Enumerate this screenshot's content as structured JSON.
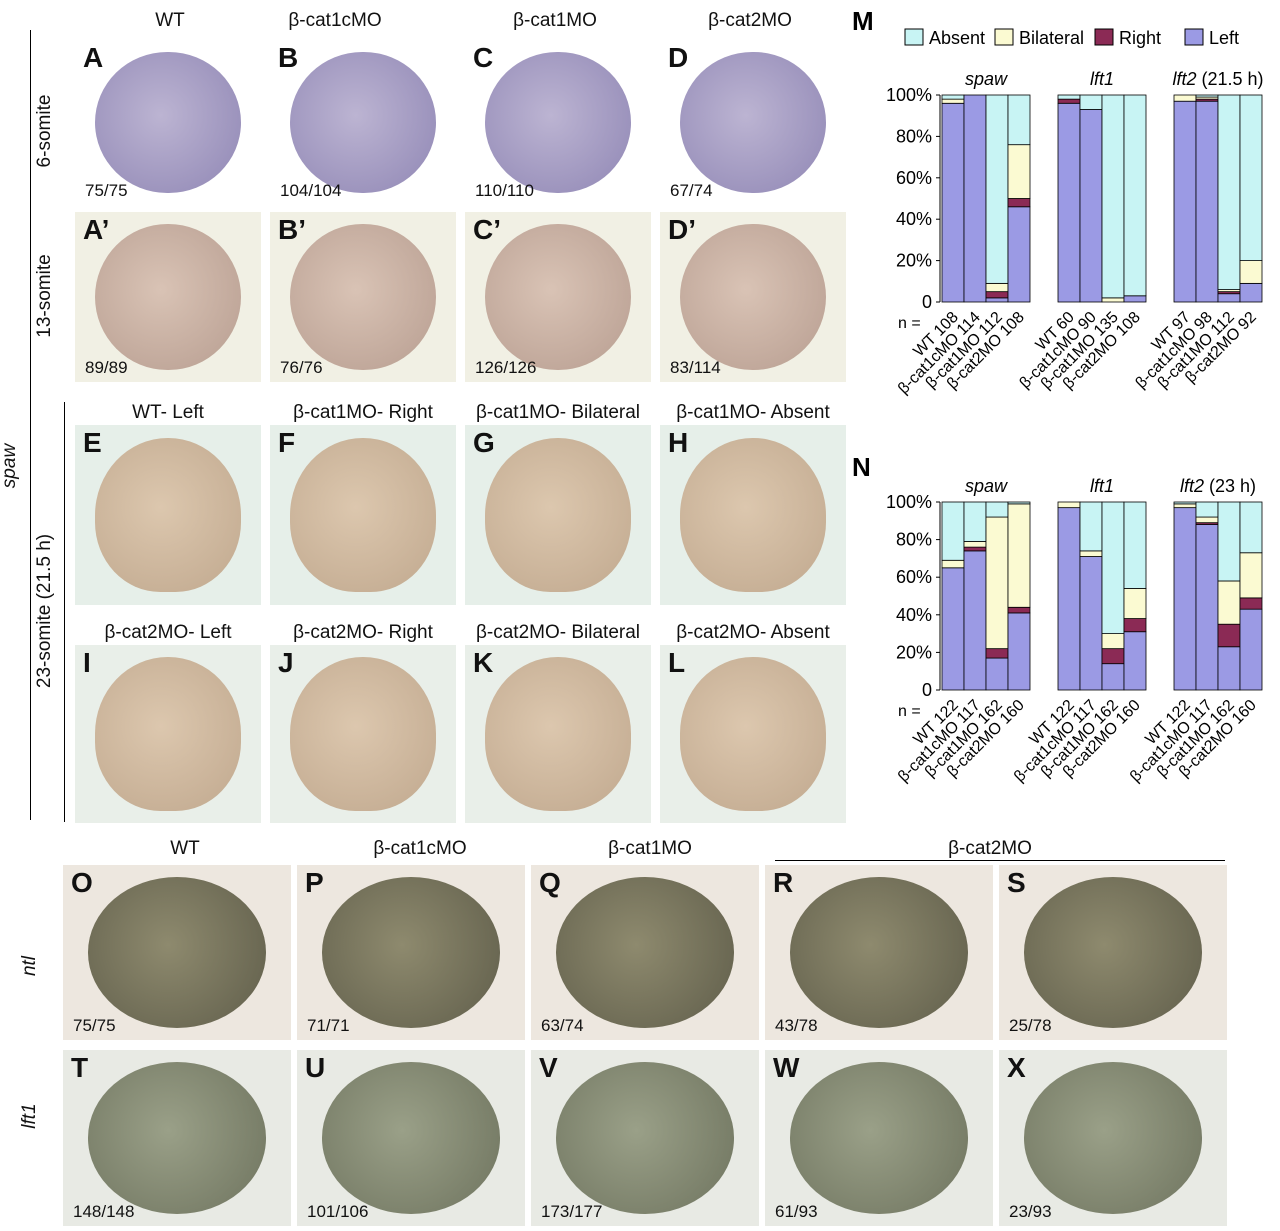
{
  "top_titles": [
    "WT",
    "β-cat1cMO",
    "β-cat1MO",
    "β-cat2MO"
  ],
  "left_labels": {
    "spaw": "spaw",
    "six_somite": "6-somite",
    "thirteen_somite": "13-somite",
    "twentythree_somite": "23-somite (21.5 h)"
  },
  "row1": [
    {
      "letter": "A",
      "count": "75/75"
    },
    {
      "letter": "B",
      "count": "104/104"
    },
    {
      "letter": "C",
      "count": "110/110"
    },
    {
      "letter": "D",
      "count": "67/74"
    }
  ],
  "row2": [
    {
      "letter": "A’",
      "count": "89/89"
    },
    {
      "letter": "B’",
      "count": "76/76"
    },
    {
      "letter": "C’",
      "count": "126/126"
    },
    {
      "letter": "D’",
      "count": "83/114"
    }
  ],
  "row3_titles": [
    "WT- Left",
    "β-cat1MO- Right",
    "β-cat1MO- Bilateral",
    "β-cat1MO- Absent"
  ],
  "row3_letters": [
    "E",
    "F",
    "G",
    "H"
  ],
  "row4_titles": [
    "β-cat2MO- Left",
    "β-cat2MO- Right",
    "β-cat2MO- Bilateral",
    "β-cat2MO- Absent"
  ],
  "row4_letters": [
    "I",
    "J",
    "K",
    "L"
  ],
  "bottom_titles": {
    "wt": "WT",
    "b1c": "β-cat1cMO",
    "b1": "β-cat1MO",
    "b2": "β-cat2MO"
  },
  "bottom_row_labels": {
    "ntl": "ntl",
    "lft1": "lft1"
  },
  "row_ntl": [
    {
      "letter": "O",
      "count": "75/75"
    },
    {
      "letter": "P",
      "count": "71/71"
    },
    {
      "letter": "Q",
      "count": "63/74"
    },
    {
      "letter": "R",
      "count": "43/78"
    },
    {
      "letter": "S",
      "count": "25/78"
    }
  ],
  "row_lft1": [
    {
      "letter": "T",
      "count": "148/148"
    },
    {
      "letter": "U",
      "count": "101/106"
    },
    {
      "letter": "V",
      "count": "173/177"
    },
    {
      "letter": "W",
      "count": "61/93"
    },
    {
      "letter": "X",
      "count": "23/93"
    }
  ],
  "colors": {
    "absent": "#c8f4f4",
    "bilateral": "#fbfad2",
    "right": "#8b2a55",
    "left": "#9b9ae4"
  },
  "chart_data": [
    {
      "type": "bar",
      "label": "M",
      "legend": [
        "Absent",
        "Bilateral",
        "Right",
        "Left"
      ],
      "ylim": [
        0,
        100
      ],
      "yticks": [
        "0",
        "20%",
        "40%",
        "60%",
        "80%",
        "100%"
      ],
      "n_label": "n =",
      "groups": [
        {
          "name": "spaw",
          "name_italic": true,
          "suffix": "",
          "bars": [
            {
              "cat": "WT",
              "n": "108",
              "left": 96,
              "right": 0,
              "bilateral": 2,
              "absent": 2
            },
            {
              "cat": "β-cat1cMO",
              "n": "114",
              "left": 100,
              "right": 0,
              "bilateral": 0,
              "absent": 0
            },
            {
              "cat": "β-cat1MO",
              "n": "112",
              "left": 2,
              "right": 3,
              "bilateral": 4,
              "absent": 91
            },
            {
              "cat": "β-cat2MO",
              "n": "108",
              "left": 46,
              "right": 4,
              "bilateral": 26,
              "absent": 24
            }
          ]
        },
        {
          "name": "lft1",
          "name_italic": true,
          "suffix": "",
          "bars": [
            {
              "cat": "WT",
              "n": "60",
              "left": 96,
              "right": 2,
              "bilateral": 0,
              "absent": 2
            },
            {
              "cat": "β-cat1cMO",
              "n": "90",
              "left": 93,
              "right": 0,
              "bilateral": 0,
              "absent": 7
            },
            {
              "cat": "β-cat1MO",
              "n": "135",
              "left": 0,
              "right": 0,
              "bilateral": 2,
              "absent": 98
            },
            {
              "cat": "β-cat2MO",
              "n": "108",
              "left": 3,
              "right": 0,
              "bilateral": 0,
              "absent": 97
            }
          ]
        },
        {
          "name": "lft2",
          "name_italic": true,
          "suffix": " (21.5 h)",
          "bars": [
            {
              "cat": "WT",
              "n": "97",
              "left": 97,
              "right": 0,
              "bilateral": 3,
              "absent": 0
            },
            {
              "cat": "β-cat1cMO",
              "n": "98",
              "left": 97,
              "right": 1,
              "bilateral": 1,
              "absent": 1
            },
            {
              "cat": "β-cat1MO",
              "n": "112",
              "left": 4,
              "right": 1,
              "bilateral": 1,
              "absent": 94
            },
            {
              "cat": "β-cat2MO",
              "n": "92",
              "left": 9,
              "right": 0,
              "bilateral": 11,
              "absent": 80
            }
          ]
        }
      ]
    },
    {
      "type": "bar",
      "label": "N",
      "ylim": [
        0,
        100
      ],
      "yticks": [
        "0",
        "20%",
        "40%",
        "60%",
        "80%",
        "100%"
      ],
      "n_label": "n =",
      "groups": [
        {
          "name": "spaw",
          "name_italic": true,
          "suffix": "",
          "bars": [
            {
              "cat": "WT",
              "n": "122",
              "left": 65,
              "right": 0,
              "bilateral": 4,
              "absent": 31
            },
            {
              "cat": "β-cat1cMO",
              "n": "117",
              "left": 74,
              "right": 2,
              "bilateral": 3,
              "absent": 21
            },
            {
              "cat": "β-cat1MO",
              "n": "162",
              "left": 17,
              "right": 5,
              "bilateral": 70,
              "absent": 8
            },
            {
              "cat": "β-cat2MO",
              "n": "160",
              "left": 41,
              "right": 3,
              "bilateral": 55,
              "absent": 1
            }
          ]
        },
        {
          "name": "lft1",
          "name_italic": true,
          "suffix": "",
          "bars": [
            {
              "cat": "WT",
              "n": "122",
              "left": 97,
              "right": 0,
              "bilateral": 3,
              "absent": 0
            },
            {
              "cat": "β-cat1cMO",
              "n": "117",
              "left": 71,
              "right": 0,
              "bilateral": 3,
              "absent": 26
            },
            {
              "cat": "β-cat1MO",
              "n": "162",
              "left": 14,
              "right": 8,
              "bilateral": 8,
              "absent": 70
            },
            {
              "cat": "β-cat2MO",
              "n": "160",
              "left": 31,
              "right": 7,
              "bilateral": 16,
              "absent": 46
            }
          ]
        },
        {
          "name": "lft2",
          "name_italic": true,
          "suffix": " (23 h)",
          "bars": [
            {
              "cat": "WT",
              "n": "122",
              "left": 97,
              "right": 0,
              "bilateral": 2,
              "absent": 1
            },
            {
              "cat": "β-cat1cMO",
              "n": "117",
              "left": 88,
              "right": 1,
              "bilateral": 3,
              "absent": 8
            },
            {
              "cat": "β-cat1MO",
              "n": "162",
              "left": 23,
              "right": 12,
              "bilateral": 23,
              "absent": 42
            },
            {
              "cat": "β-cat2MO",
              "n": "160",
              "left": 43,
              "right": 6,
              "bilateral": 24,
              "absent": 27
            }
          ]
        }
      ]
    }
  ]
}
